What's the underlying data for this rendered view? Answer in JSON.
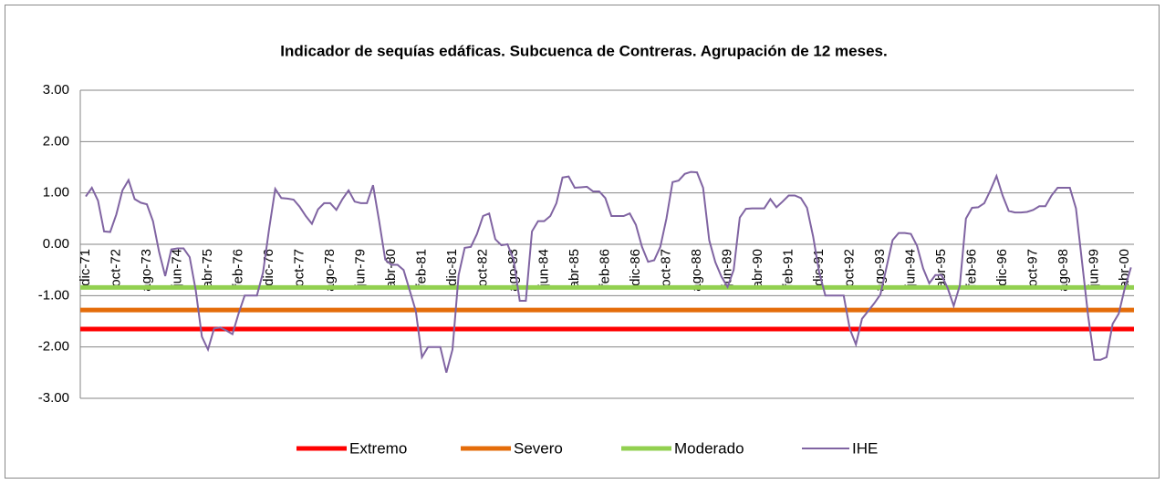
{
  "chart_data": {
    "type": "line",
    "title": "Indicador de sequías edáficas. Subcuenca de Contreras. Agrupación de 12 meses.",
    "categories": [
      "dic-71",
      null,
      null,
      null,
      null,
      "oct-72",
      null,
      null,
      null,
      null,
      "ago-73",
      null,
      null,
      null,
      null,
      "jun-74",
      null,
      null,
      null,
      null,
      "abr-75",
      null,
      null,
      null,
      null,
      "feb-76",
      null,
      null,
      null,
      null,
      "dic-76",
      null,
      null,
      null,
      null,
      "oct-77",
      null,
      null,
      null,
      null,
      "ago-78",
      null,
      null,
      null,
      null,
      "jun-79",
      null,
      null,
      null,
      null,
      "abr-80",
      null,
      null,
      null,
      null,
      "feb-81",
      null,
      null,
      null,
      null,
      "dic-81",
      null,
      null,
      null,
      null,
      "oct-82",
      null,
      null,
      null,
      null,
      "ago-83",
      null,
      null,
      null,
      null,
      "jun-84",
      null,
      null,
      null,
      null,
      "abr-85",
      null,
      null,
      null,
      null,
      "feb-86",
      null,
      null,
      null,
      null,
      "dic-86",
      null,
      null,
      null,
      null,
      "oct-87",
      null,
      null,
      null,
      null,
      "ago-88",
      null,
      null,
      null,
      null,
      "jun-89",
      null,
      null,
      null,
      null,
      "abr-90",
      null,
      null,
      null,
      null,
      "feb-91",
      null,
      null,
      null,
      null,
      "dic-91",
      null,
      null,
      null,
      null,
      "oct-92",
      null,
      null,
      null,
      null,
      "ago-93",
      null,
      null,
      null,
      null,
      "jun-94",
      null,
      null,
      null,
      null,
      "abr-95",
      null,
      null,
      null,
      null,
      "feb-96",
      null,
      null,
      null,
      null,
      "dic-96",
      null,
      null,
      null,
      null,
      "oct-97",
      null,
      null,
      null,
      null,
      "ago-98",
      null,
      null,
      null,
      null,
      "jun-99",
      null,
      null,
      null,
      null,
      "abr-00",
      null
    ],
    "series": [
      {
        "name": "Extremo",
        "color": "#ff0000",
        "value": -1.65
      },
      {
        "name": "Severo",
        "color": "#e46c0a",
        "value": -1.28
      },
      {
        "name": "Moderado",
        "color": "#92d050",
        "value": -0.84
      },
      {
        "name": "IHE",
        "color": "#8064a2",
        "values": [
          0.93,
          1.1,
          0.85,
          0.25,
          0.24,
          0.58,
          1.05,
          1.25,
          0.88,
          0.81,
          0.78,
          0.45,
          -0.15,
          -0.62,
          -0.1,
          -0.08,
          -0.08,
          -0.25,
          -0.9,
          -1.8,
          -2.05,
          -1.64,
          -1.62,
          -1.68,
          -1.75,
          -1.35,
          -1.0,
          -1.0,
          -1.0,
          -0.55,
          0.3,
          1.08,
          0.9,
          0.89,
          0.87,
          0.73,
          0.55,
          0.4,
          0.68,
          0.8,
          0.8,
          0.67,
          0.88,
          1.05,
          0.83,
          0.8,
          0.8,
          1.15,
          0.45,
          -0.3,
          -0.4,
          -0.4,
          -0.5,
          -0.9,
          -1.3,
          -2.2,
          -2.0,
          -2.0,
          -2.0,
          -2.5,
          -2.05,
          -0.6,
          -0.07,
          -0.05,
          0.2,
          0.55,
          0.6,
          0.1,
          -0.02,
          0.0,
          -0.3,
          -1.1,
          -1.1,
          0.25,
          0.45,
          0.45,
          0.55,
          0.8,
          1.3,
          1.32,
          1.1,
          1.11,
          1.12,
          1.03,
          1.03,
          0.9,
          0.55,
          0.55,
          0.55,
          0.6,
          0.38,
          -0.05,
          -0.34,
          -0.31,
          -0.05,
          0.5,
          1.21,
          1.24,
          1.37,
          1.41,
          1.4,
          1.1,
          0.08,
          -0.35,
          -0.63,
          -0.83,
          -0.5,
          0.52,
          0.69,
          0.7,
          0.7,
          0.7,
          0.88,
          0.72,
          0.83,
          0.95,
          0.95,
          0.9,
          0.71,
          0.15,
          -0.55,
          -1.0,
          -1.0,
          -1.0,
          -1.0,
          -1.65,
          -1.95,
          -1.45,
          -1.3,
          -1.15,
          -0.98,
          -0.45,
          0.08,
          0.22,
          0.22,
          0.2,
          -0.03,
          -0.47,
          -0.76,
          -0.6,
          -0.6,
          -0.85,
          -1.2,
          -0.8,
          0.5,
          0.71,
          0.72,
          0.8,
          1.05,
          1.33,
          0.95,
          0.65,
          0.62,
          0.62,
          0.63,
          0.67,
          0.74,
          0.74,
          0.95,
          1.1,
          1.1,
          1.1,
          0.7,
          -0.35,
          -1.4,
          -2.25,
          -2.25,
          -2.2,
          -1.55,
          -1.35,
          -0.85,
          -0.45
        ]
      }
    ],
    "ylim": [
      -3,
      3
    ],
    "yticks": [
      {
        "value": -3,
        "label": "-3.00"
      },
      {
        "value": -2,
        "label": "-2.00"
      },
      {
        "value": -1,
        "label": "-1.00"
      },
      {
        "value": 0,
        "label": "0.00"
      },
      {
        "value": 1,
        "label": "1.00"
      },
      {
        "value": 2,
        "label": "2.00"
      },
      {
        "value": 3,
        "label": "3.00"
      }
    ],
    "grid": true,
    "legend": "bottom"
  }
}
